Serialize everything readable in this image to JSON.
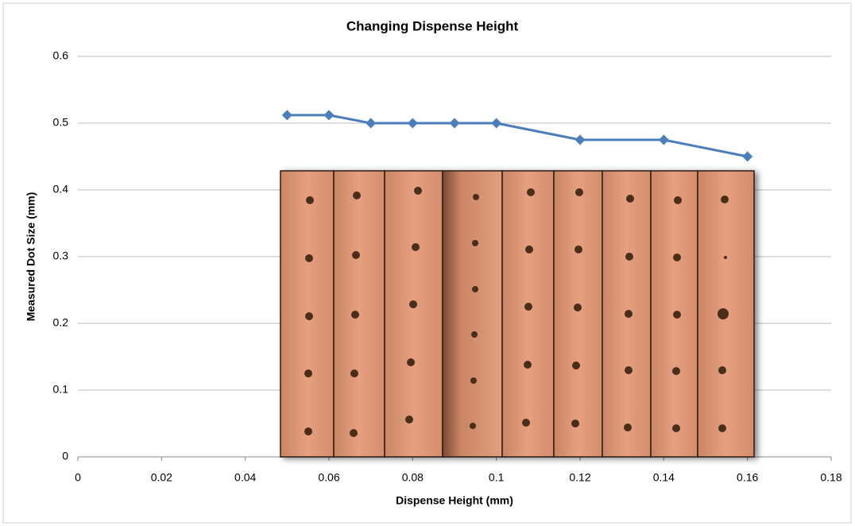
{
  "chart_data": {
    "type": "line",
    "title": "Changing Dispense Height",
    "x_label": "Dispense Height (mm)",
    "y_label": "Measured Dot Size (mm)",
    "x": [
      0.05,
      0.06,
      0.07,
      0.08,
      0.09,
      0.1,
      0.12,
      0.14,
      0.16
    ],
    "series": [
      {
        "color": "#4a7ebb",
        "values": [
          0.512,
          0.512,
          0.5,
          0.5,
          0.5,
          0.5,
          0.475,
          0.475,
          0.45
        ]
      }
    ],
    "xlim": [
      0,
      0.18
    ],
    "xticks": [
      0,
      0.02,
      0.04,
      0.06,
      0.08,
      0.1,
      0.12,
      0.14,
      0.16,
      0.18
    ],
    "ylim": [
      0,
      0.6
    ],
    "yticks": [
      0,
      0.1,
      0.2,
      0.3,
      0.4,
      0.5,
      0.6
    ],
    "grid": true
  }
}
